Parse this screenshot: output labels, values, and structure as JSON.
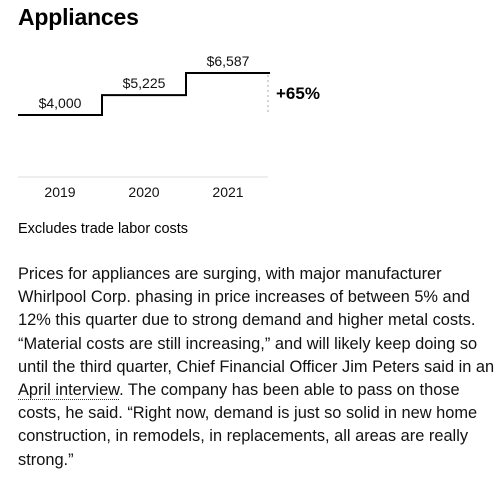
{
  "title": "Appliances",
  "chart_data": {
    "type": "step-line",
    "categories": [
      "2019",
      "2020",
      "2021"
    ],
    "values": [
      4000,
      5225,
      6587
    ],
    "value_labels": [
      "$4,000",
      "$5,225",
      "$6,587"
    ],
    "change_label": "+65%",
    "ylim": [
      0,
      7000
    ],
    "grid": false,
    "line_color": "#000000",
    "baseline_color": "#dddddd"
  },
  "note": "Excludes trade labor costs",
  "article": {
    "part1": "Prices for appliances are surging, with major manufacturer Whirlpool Corp. phasing in price increases of between 5% and 12% this quarter due to strong demand and higher metal costs. “Material costs are still increasing,” and will likely keep doing so until the third quarter, Chief Financial Officer Jim Peters said in an ",
    "link_text": "April interview",
    "part2": ". The company has been able to pass on those costs, he said. “Right now, demand is just so solid in new home construction, in remodels, in replacements, all areas are really strong.”"
  }
}
